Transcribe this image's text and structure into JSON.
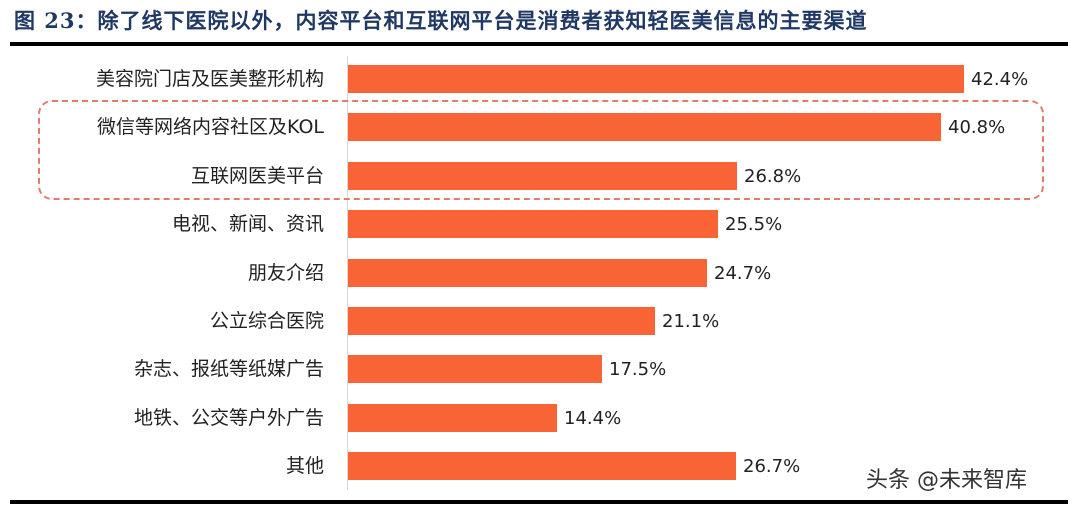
{
  "title": "图 23：除了线下医院以外，内容平台和互联网平台是消费者获知轻医美信息的主要渠道",
  "watermark": "头条 @未来智库",
  "colors": {
    "bar": "#f86436",
    "title": "#1f3864",
    "highlight_border": "#e07d6a"
  },
  "chart_data": {
    "type": "bar",
    "orientation": "horizontal",
    "title": "图 23：除了线下医院以外，内容平台和互联网平台是消费者获知轻医美信息的主要渠道",
    "xlabel": "",
    "ylabel": "",
    "xlim": [
      0,
      42.4
    ],
    "grid": false,
    "legend": null,
    "categories": [
      "美容院门店及医美整形机构",
      "微信等网络内容社区及KOL",
      "互联网医美平台",
      "电视、新闻、资讯",
      "朋友介绍",
      "公立综合医院",
      "杂志、报纸等纸媒广告",
      "地铁、公交等户外广告",
      "其他"
    ],
    "values": [
      42.4,
      40.8,
      26.8,
      25.5,
      24.7,
      21.1,
      17.5,
      14.4,
      26.7
    ],
    "value_labels": [
      "42.4%",
      "40.8%",
      "26.8%",
      "25.5%",
      "24.7%",
      "21.1%",
      "17.5%",
      "14.4%",
      "26.7%"
    ],
    "unit": "%",
    "annotations": [
      "dashed rounded box highlights 微信等网络内容社区及KOL and 互联网医美平台"
    ]
  }
}
